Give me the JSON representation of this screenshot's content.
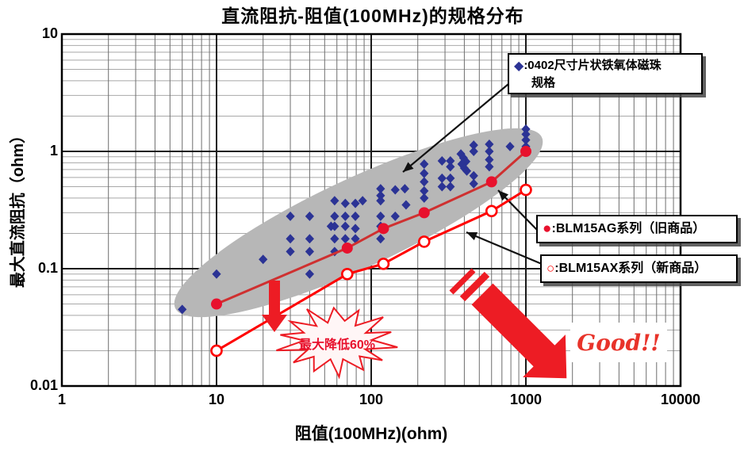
{
  "title": "直流阻抗-阻值(100MHz)的规格分布",
  "colors": {
    "diamond": "#2b3395",
    "ag_line": "#cf3030",
    "ag_marker": "#e8112d",
    "ax_line": "#ff0000",
    "highlight_ellipse": "#b7b7b7",
    "grid_major": "#1a1a1a",
    "grid_minor_v": "#6e6e6e",
    "grid_minor_h": "#a8a8a8",
    "annotation_red": "#ed1c24",
    "callout_black": "#111111"
  },
  "chart_data": {
    "type": "scatter",
    "title": "直流阻抗-阻值(100MHz)的规格分布",
    "xlabel": "阻值(100MHz)(ohm)",
    "ylabel": "最大直流阻抗（ohm）",
    "x_scale": "log",
    "y_scale": "log",
    "xlim": [
      1,
      10000
    ],
    "ylim": [
      0.01,
      10
    ],
    "x_ticks": [
      "1",
      "10",
      "100",
      "1000",
      "10000"
    ],
    "y_ticks": [
      "10",
      "1",
      "0.1",
      "0.01"
    ],
    "grid": "on",
    "series": [
      {
        "name": "0402尺寸片状铁氧体磁珠规格",
        "marker": "diamond",
        "line": false,
        "points": [
          [
            6,
            0.045
          ],
          [
            10,
            0.09
          ],
          [
            20,
            0.12
          ],
          [
            30,
            0.28
          ],
          [
            30,
            0.18
          ],
          [
            30,
            0.14
          ],
          [
            40,
            0.28
          ],
          [
            40,
            0.18
          ],
          [
            40,
            0.14
          ],
          [
            40,
            0.09
          ],
          [
            55,
            0.23
          ],
          [
            58,
            0.38
          ],
          [
            58,
            0.28
          ],
          [
            58,
            0.23
          ],
          [
            58,
            0.18
          ],
          [
            58,
            0.14
          ],
          [
            68,
            0.36
          ],
          [
            68,
            0.28
          ],
          [
            68,
            0.23
          ],
          [
            68,
            0.18
          ],
          [
            79,
            0.36
          ],
          [
            79,
            0.28
          ],
          [
            79,
            0.22
          ],
          [
            79,
            0.18
          ],
          [
            88,
            0.38
          ],
          [
            115,
            0.48
          ],
          [
            115,
            0.42
          ],
          [
            115,
            0.38
          ],
          [
            115,
            0.28
          ],
          [
            115,
            0.23
          ],
          [
            115,
            0.18
          ],
          [
            143,
            0.47
          ],
          [
            143,
            0.28
          ],
          [
            165,
            0.48
          ],
          [
            168,
            0.35
          ],
          [
            220,
            0.78
          ],
          [
            220,
            0.65
          ],
          [
            220,
            0.55
          ],
          [
            220,
            0.46
          ],
          [
            220,
            0.4
          ],
          [
            287,
            0.83
          ],
          [
            287,
            0.59
          ],
          [
            287,
            0.5
          ],
          [
            325,
            0.83
          ],
          [
            325,
            0.74
          ],
          [
            325,
            0.59
          ],
          [
            325,
            0.5
          ],
          [
            380,
            0.95
          ],
          [
            395,
            0.88
          ],
          [
            395,
            0.8
          ],
          [
            410,
            0.82
          ],
          [
            385,
            0.78
          ],
          [
            400,
            0.72
          ],
          [
            415,
            0.68
          ],
          [
            460,
            1.13
          ],
          [
            460,
            1.0
          ],
          [
            460,
            0.62
          ],
          [
            460,
            0.53
          ],
          [
            580,
            1.15
          ],
          [
            580,
            1.0
          ],
          [
            580,
            0.85
          ],
          [
            580,
            0.74
          ],
          [
            790,
            1.1
          ],
          [
            1000,
            1.55
          ],
          [
            1000,
            1.4
          ],
          [
            1000,
            1.25
          ],
          [
            1000,
            1.1
          ]
        ]
      },
      {
        "name": "BLM15AG系列（旧商品）",
        "marker": "filled-circle",
        "line": true,
        "points": [
          [
            10,
            0.05
          ],
          [
            70,
            0.15
          ],
          [
            120,
            0.22
          ],
          [
            220,
            0.3
          ],
          [
            600,
            0.55
          ],
          [
            1000,
            1.0
          ]
        ]
      },
      {
        "name": "BLM15AX系列（新商品）",
        "marker": "open-circle",
        "line": true,
        "points": [
          [
            10,
            0.02
          ],
          [
            70,
            0.09
          ],
          [
            120,
            0.11
          ],
          [
            220,
            0.17
          ],
          [
            600,
            0.31
          ],
          [
            1000,
            0.47
          ]
        ]
      }
    ],
    "annotations": {
      "burst_label": "最大降低60%",
      "good_label": "Good!!",
      "highlight": "灰色椭圆覆盖0402规格分布区域"
    }
  },
  "legend": {
    "items": [
      {
        "marker": "◆",
        "label": ":0402尺寸片状铁氧体磁珠",
        "label_line2": "规格"
      },
      {
        "marker": "●",
        "label": ":BLM15AG系列（旧商品）"
      },
      {
        "marker": "○",
        "label": ":BLM15AX系列（新商品）"
      }
    ]
  }
}
